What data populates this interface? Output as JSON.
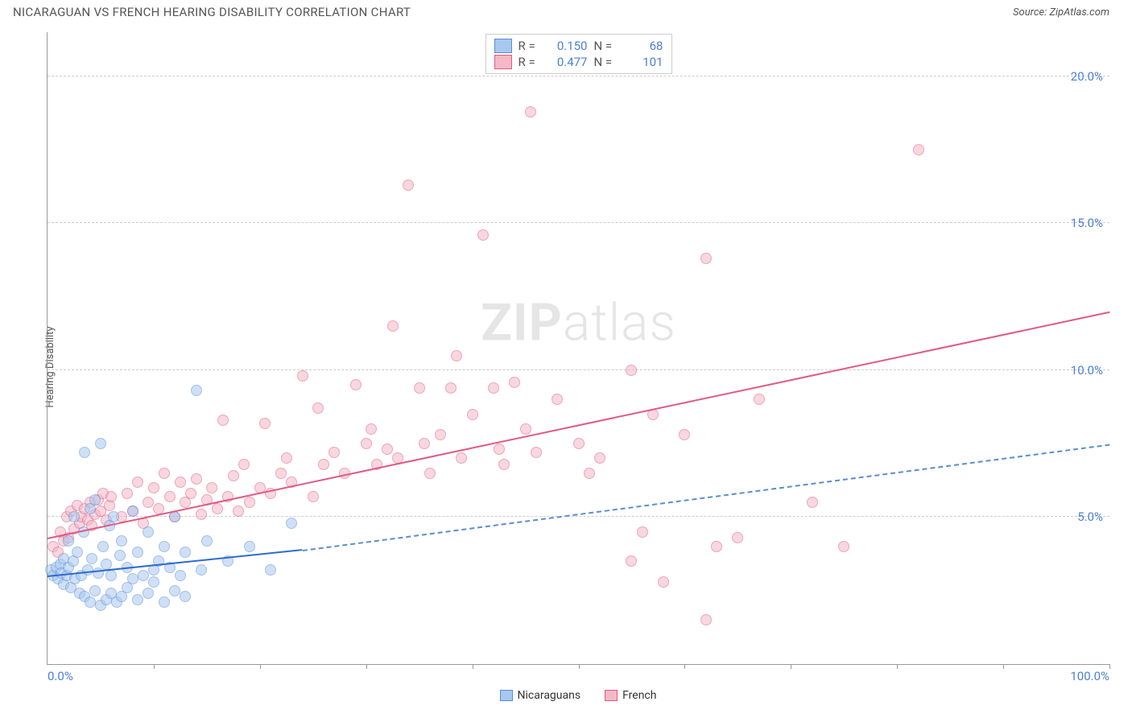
{
  "title": "NICARAGUAN VS FRENCH HEARING DISABILITY CORRELATION CHART",
  "source_label": "Source:",
  "source_name": "ZipAtlas.com",
  "ylabel": "Hearing Disability",
  "watermark_a": "ZIP",
  "watermark_b": "atlas",
  "chart": {
    "type": "scatter",
    "xlim": [
      0,
      100
    ],
    "ylim": [
      0,
      21.5
    ],
    "x_origin_label": "0.0%",
    "x_max_label": "100.0%",
    "y_grid": [
      5.0,
      10.0,
      15.0,
      20.0
    ],
    "y_grid_labels": [
      "5.0%",
      "10.0%",
      "15.0%",
      "20.0%"
    ],
    "x_ticks": [
      10,
      20,
      30,
      40,
      50,
      60,
      70,
      80,
      90,
      100
    ],
    "background_color": "#ffffff",
    "grid_color": "#cccccc",
    "axis_color": "#999999",
    "label_color": "#4a7fd4",
    "marker_radius": 7,
    "marker_stroke_width": 1,
    "series": {
      "nicaraguans": {
        "label": "Nicaraguans",
        "color_fill": "#a8c8f0",
        "color_stroke": "#5a8dd4",
        "fill_opacity": 0.55,
        "R": "0.150",
        "N": "68",
        "trend": {
          "x1": 0,
          "y1": 3.0,
          "x2": 24,
          "y2": 3.9,
          "color": "#2e6bd0",
          "width": 2
        },
        "trend_ext": {
          "x1": 24,
          "y1": 3.9,
          "x2": 100,
          "y2": 7.5,
          "color": "#5a8dd4",
          "dash": true
        },
        "points": [
          [
            0.3,
            3.2
          ],
          [
            0.5,
            3.0
          ],
          [
            0.8,
            3.3
          ],
          [
            1.0,
            2.9
          ],
          [
            1.2,
            3.4
          ],
          [
            1.3,
            3.1
          ],
          [
            1.5,
            3.6
          ],
          [
            1.5,
            2.7
          ],
          [
            1.8,
            3.0
          ],
          [
            2.0,
            4.2
          ],
          [
            2.0,
            3.3
          ],
          [
            2.2,
            2.6
          ],
          [
            2.4,
            3.5
          ],
          [
            2.5,
            5.0
          ],
          [
            2.6,
            2.9
          ],
          [
            2.8,
            3.8
          ],
          [
            3.0,
            2.4
          ],
          [
            3.2,
            3.0
          ],
          [
            3.4,
            4.5
          ],
          [
            3.5,
            2.3
          ],
          [
            3.5,
            7.2
          ],
          [
            3.8,
            3.2
          ],
          [
            4.0,
            2.1
          ],
          [
            4.0,
            5.3
          ],
          [
            4.2,
            3.6
          ],
          [
            4.5,
            2.5
          ],
          [
            4.5,
            5.6
          ],
          [
            4.8,
            3.1
          ],
          [
            5.0,
            2.0
          ],
          [
            5.0,
            7.5
          ],
          [
            5.2,
            4.0
          ],
          [
            5.5,
            2.2
          ],
          [
            5.5,
            3.4
          ],
          [
            5.8,
            4.7
          ],
          [
            6.0,
            2.4
          ],
          [
            6.0,
            3.0
          ],
          [
            6.2,
            5.0
          ],
          [
            6.5,
            2.1
          ],
          [
            6.8,
            3.7
          ],
          [
            7.0,
            2.3
          ],
          [
            7.0,
            4.2
          ],
          [
            7.5,
            2.6
          ],
          [
            7.5,
            3.3
          ],
          [
            8.0,
            2.9
          ],
          [
            8.0,
            5.2
          ],
          [
            8.5,
            2.2
          ],
          [
            8.5,
            3.8
          ],
          [
            9.0,
            3.0
          ],
          [
            9.5,
            2.4
          ],
          [
            9.5,
            4.5
          ],
          [
            10.0,
            3.2
          ],
          [
            10.0,
            2.8
          ],
          [
            10.5,
            3.5
          ],
          [
            11.0,
            4.0
          ],
          [
            11.0,
            2.1
          ],
          [
            11.5,
            3.3
          ],
          [
            12.0,
            2.5
          ],
          [
            12.0,
            5.0
          ],
          [
            12.5,
            3.0
          ],
          [
            13.0,
            2.3
          ],
          [
            13.0,
            3.8
          ],
          [
            14.0,
            9.3
          ],
          [
            14.5,
            3.2
          ],
          [
            15.0,
            4.2
          ],
          [
            17.0,
            3.5
          ],
          [
            19.0,
            4.0
          ],
          [
            21.0,
            3.2
          ],
          [
            23.0,
            4.8
          ]
        ]
      },
      "french": {
        "label": "French",
        "color_fill": "#f4b8c6",
        "color_stroke": "#e05a84",
        "fill_opacity": 0.55,
        "R": "0.477",
        "N": "101",
        "trend": {
          "x1": 0,
          "y1": 4.3,
          "x2": 100,
          "y2": 12.0,
          "color": "#e05a84",
          "width": 2
        },
        "points": [
          [
            0.5,
            4.0
          ],
          [
            1.0,
            3.8
          ],
          [
            1.2,
            4.5
          ],
          [
            1.5,
            4.2
          ],
          [
            1.8,
            5.0
          ],
          [
            2.0,
            4.3
          ],
          [
            2.2,
            5.2
          ],
          [
            2.5,
            4.6
          ],
          [
            2.8,
            5.4
          ],
          [
            3.0,
            4.8
          ],
          [
            3.2,
            5.0
          ],
          [
            3.5,
            5.3
          ],
          [
            3.8,
            4.9
          ],
          [
            4.0,
            5.5
          ],
          [
            4.2,
            4.7
          ],
          [
            4.5,
            5.1
          ],
          [
            4.8,
            5.6
          ],
          [
            5.0,
            5.2
          ],
          [
            5.2,
            5.8
          ],
          [
            5.5,
            4.9
          ],
          [
            5.8,
            5.4
          ],
          [
            6.0,
            5.7
          ],
          [
            7.0,
            5.0
          ],
          [
            7.5,
            5.8
          ],
          [
            8.0,
            5.2
          ],
          [
            8.5,
            6.2
          ],
          [
            9.0,
            4.8
          ],
          [
            9.5,
            5.5
          ],
          [
            10.0,
            6.0
          ],
          [
            10.5,
            5.3
          ],
          [
            11.0,
            6.5
          ],
          [
            11.5,
            5.7
          ],
          [
            12.0,
            5.0
          ],
          [
            12.5,
            6.2
          ],
          [
            13.0,
            5.5
          ],
          [
            13.5,
            5.8
          ],
          [
            14.0,
            6.3
          ],
          [
            14.5,
            5.1
          ],
          [
            15.0,
            5.6
          ],
          [
            15.5,
            6.0
          ],
          [
            16.0,
            5.3
          ],
          [
            16.5,
            8.3
          ],
          [
            17.0,
            5.7
          ],
          [
            17.5,
            6.4
          ],
          [
            18.0,
            5.2
          ],
          [
            18.5,
            6.8
          ],
          [
            19.0,
            5.5
          ],
          [
            20.0,
            6.0
          ],
          [
            20.5,
            8.2
          ],
          [
            21.0,
            5.8
          ],
          [
            22.0,
            6.5
          ],
          [
            22.5,
            7.0
          ],
          [
            23.0,
            6.2
          ],
          [
            24.0,
            9.8
          ],
          [
            25.0,
            5.7
          ],
          [
            25.5,
            8.7
          ],
          [
            26.0,
            6.8
          ],
          [
            27.0,
            7.2
          ],
          [
            28.0,
            6.5
          ],
          [
            29.0,
            9.5
          ],
          [
            30.0,
            7.5
          ],
          [
            30.5,
            8.0
          ],
          [
            31.0,
            6.8
          ],
          [
            32.0,
            7.3
          ],
          [
            32.5,
            11.5
          ],
          [
            33.0,
            7.0
          ],
          [
            34.0,
            16.3
          ],
          [
            35.0,
            9.4
          ],
          [
            35.5,
            7.5
          ],
          [
            36.0,
            6.5
          ],
          [
            37.0,
            7.8
          ],
          [
            38.0,
            9.4
          ],
          [
            38.5,
            10.5
          ],
          [
            39.0,
            7.0
          ],
          [
            40.0,
            8.5
          ],
          [
            41.0,
            14.6
          ],
          [
            42.0,
            9.4
          ],
          [
            42.5,
            7.3
          ],
          [
            43.0,
            6.8
          ],
          [
            44.0,
            9.6
          ],
          [
            45.0,
            8.0
          ],
          [
            45.5,
            18.8
          ],
          [
            46.0,
            7.2
          ],
          [
            48.0,
            9.0
          ],
          [
            50.0,
            7.5
          ],
          [
            51.0,
            6.5
          ],
          [
            52.0,
            7.0
          ],
          [
            55.0,
            10.0
          ],
          [
            56.0,
            4.5
          ],
          [
            57.0,
            8.5
          ],
          [
            58.0,
            2.8
          ],
          [
            60.0,
            7.8
          ],
          [
            62.0,
            13.8
          ],
          [
            63.0,
            4.0
          ],
          [
            65.0,
            4.3
          ],
          [
            67.0,
            9.0
          ],
          [
            72.0,
            5.5
          ],
          [
            75.0,
            4.0
          ],
          [
            82.0,
            17.5
          ],
          [
            62.0,
            1.5
          ],
          [
            55.0,
            3.5
          ]
        ]
      }
    }
  },
  "legend_top": {
    "r_label": "R  =",
    "n_label": "N  ="
  },
  "colors": {
    "axis_label": "#4a7fd4",
    "text": "#555555"
  }
}
